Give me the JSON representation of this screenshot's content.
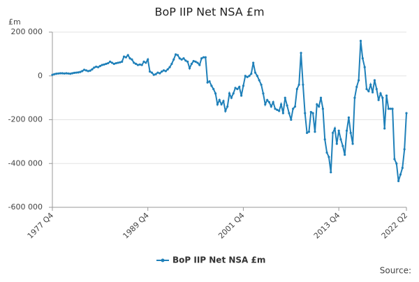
{
  "chart_data": {
    "type": "line",
    "title": "BoP IIP Net NSA £m",
    "y_unit_label": "£m",
    "source_label": "Source:",
    "categories": [
      "1977 Q4",
      null,
      null,
      null,
      null,
      null,
      null,
      null,
      null,
      null,
      null,
      null,
      null,
      null,
      null,
      null,
      null,
      null,
      null,
      null,
      null,
      null,
      null,
      null,
      null,
      null,
      null,
      null,
      null,
      null,
      null,
      null,
      null,
      null,
      null,
      null,
      null,
      null,
      null,
      null,
      null,
      null,
      null,
      null,
      null,
      null,
      null,
      null,
      "1989 Q4",
      null,
      null,
      null,
      null,
      null,
      null,
      null,
      null,
      null,
      null,
      null,
      null,
      null,
      null,
      null,
      null,
      null,
      null,
      null,
      null,
      null,
      null,
      null,
      null,
      null,
      null,
      null,
      null,
      null,
      null,
      null,
      null,
      null,
      null,
      null,
      null,
      null,
      null,
      null,
      null,
      null,
      null,
      null,
      null,
      null,
      null,
      null,
      "2001 Q4",
      null,
      null,
      null,
      null,
      null,
      null,
      null,
      null,
      null,
      null,
      null,
      null,
      null,
      null,
      null,
      null,
      null,
      null,
      null,
      null,
      null,
      null,
      null,
      null,
      null,
      null,
      null,
      null,
      null,
      null,
      null,
      null,
      null,
      null,
      null,
      null,
      null,
      null,
      null,
      null,
      null,
      null,
      null,
      null,
      null,
      null,
      null,
      "2013 Q4",
      null,
      null,
      null,
      null,
      null,
      null,
      null,
      null,
      null,
      null,
      null,
      null,
      null,
      null,
      null,
      null,
      null,
      null,
      null,
      null,
      null,
      null,
      null,
      null,
      null,
      null,
      null,
      null,
      null,
      null,
      null,
      null,
      null,
      "2022 Q2"
    ],
    "series": [
      {
        "name": "BoP IIP Net NSA £m",
        "color": "#1f80b9",
        "values": [
          5000,
          8000,
          10000,
          11000,
          12000,
          12000,
          11000,
          12000,
          11000,
          10000,
          12000,
          14000,
          15000,
          16000,
          18000,
          22000,
          28000,
          25000,
          22000,
          24000,
          30000,
          38000,
          42000,
          40000,
          45000,
          50000,
          52000,
          55000,
          58000,
          65000,
          60000,
          55000,
          58000,
          60000,
          62000,
          65000,
          88000,
          85000,
          95000,
          80000,
          75000,
          60000,
          55000,
          50000,
          52000,
          50000,
          65000,
          60000,
          75000,
          20000,
          15000,
          5000,
          8000,
          15000,
          12000,
          20000,
          25000,
          22000,
          30000,
          40000,
          55000,
          75000,
          98000,
          95000,
          80000,
          75000,
          80000,
          70000,
          65000,
          35000,
          55000,
          68000,
          65000,
          60000,
          50000,
          80000,
          85000,
          85000,
          -30000,
          -25000,
          -45000,
          -60000,
          -80000,
          -130000,
          -110000,
          -130000,
          -115000,
          -160000,
          -140000,
          -80000,
          -100000,
          -80000,
          -55000,
          -60000,
          -50000,
          -90000,
          -45000,
          0,
          -5000,
          0,
          10000,
          60000,
          15000,
          0,
          -20000,
          -40000,
          -80000,
          -130000,
          -110000,
          -120000,
          -140000,
          -120000,
          -150000,
          -155000,
          -160000,
          -130000,
          -170000,
          -100000,
          -135000,
          -170000,
          -200000,
          -150000,
          -140000,
          -60000,
          -40000,
          105000,
          -40000,
          -170000,
          -260000,
          -255000,
          -165000,
          -170000,
          -255000,
          -130000,
          -140000,
          -100000,
          -150000,
          -290000,
          -350000,
          -370000,
          -440000,
          -260000,
          -240000,
          -310000,
          -250000,
          -290000,
          -320000,
          -360000,
          -250000,
          -190000,
          -260000,
          -310000,
          -100000,
          -50000,
          -20000,
          160000,
          80000,
          40000,
          -60000,
          -70000,
          -40000,
          -75000,
          -20000,
          -60000,
          -110000,
          -80000,
          -100000,
          -240000,
          -90000,
          -150000,
          -150000,
          -150000,
          -380000,
          -400000,
          -480000,
          -450000,
          -420000,
          -335000,
          -170000
        ]
      }
    ],
    "ylim": [
      -600000,
      200000
    ],
    "yticks": [
      {
        "value": -600000,
        "label": "-600 000"
      },
      {
        "value": -400000,
        "label": "-400 000"
      },
      {
        "value": -200000,
        "label": "-200 000"
      },
      0,
      {
        "value": 200000,
        "label": "200 000"
      }
    ],
    "grid": true,
    "legend": "bottom"
  }
}
